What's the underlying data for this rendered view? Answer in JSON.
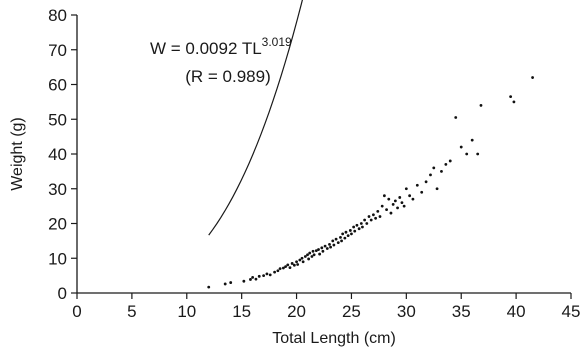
{
  "chart_data": {
    "type": "scatter",
    "xlabel": "Total Length (cm)",
    "ylabel": "Weight (g)",
    "xlim": [
      0,
      45
    ],
    "ylim": [
      0,
      80
    ],
    "xticks": [
      "0",
      "5",
      "10",
      "15",
      "20",
      "25",
      "30",
      "35",
      "40",
      "45"
    ],
    "yticks": [
      "0",
      "10",
      "20",
      "30",
      "40",
      "50",
      "60",
      "70",
      "80"
    ],
    "grid": false,
    "annotation": {
      "equation_base": "W = 0.0092 TL",
      "equation_exponent": "3.019",
      "r_text": "(R = 0.989)"
    },
    "fit": {
      "type": "power",
      "a": 0.0092,
      "b": 3.019,
      "x_range": [
        12,
        41.3
      ]
    },
    "points": [
      [
        12.0,
        1.7
      ],
      [
        13.5,
        2.6
      ],
      [
        14.0,
        3.0
      ],
      [
        15.2,
        3.4
      ],
      [
        15.8,
        3.9
      ],
      [
        16.0,
        4.5
      ],
      [
        16.3,
        4.0
      ],
      [
        16.6,
        4.8
      ],
      [
        17.0,
        5.0
      ],
      [
        17.3,
        5.5
      ],
      [
        17.6,
        5.2
      ],
      [
        18.0,
        6.0
      ],
      [
        18.3,
        6.4
      ],
      [
        18.5,
        7.0
      ],
      [
        18.8,
        7.2
      ],
      [
        19.0,
        7.6
      ],
      [
        19.2,
        8.1
      ],
      [
        19.4,
        7.3
      ],
      [
        19.6,
        8.5
      ],
      [
        19.8,
        8.0
      ],
      [
        20.0,
        9.0
      ],
      [
        20.1,
        8.2
      ],
      [
        20.3,
        9.5
      ],
      [
        20.5,
        10.0
      ],
      [
        20.6,
        9.0
      ],
      [
        20.8,
        10.5
      ],
      [
        21.0,
        11.0
      ],
      [
        21.1,
        9.8
      ],
      [
        21.2,
        11.5
      ],
      [
        21.4,
        10.5
      ],
      [
        21.5,
        12.0
      ],
      [
        21.6,
        11.0
      ],
      [
        21.8,
        12.2
      ],
      [
        22.0,
        12.5
      ],
      [
        22.1,
        11.2
      ],
      [
        22.3,
        13.0
      ],
      [
        22.4,
        12.0
      ],
      [
        22.6,
        13.5
      ],
      [
        22.8,
        12.8
      ],
      [
        23.0,
        14.0
      ],
      [
        23.1,
        13.2
      ],
      [
        23.3,
        15.0
      ],
      [
        23.4,
        13.8
      ],
      [
        23.6,
        15.5
      ],
      [
        23.8,
        14.5
      ],
      [
        24.0,
        16.0
      ],
      [
        24.1,
        15.0
      ],
      [
        24.2,
        17.0
      ],
      [
        24.4,
        15.8
      ],
      [
        24.5,
        17.5
      ],
      [
        24.7,
        16.5
      ],
      [
        24.9,
        18.0
      ],
      [
        25.0,
        17.0
      ],
      [
        25.2,
        19.0
      ],
      [
        25.3,
        17.8
      ],
      [
        25.5,
        19.5
      ],
      [
        25.7,
        18.5
      ],
      [
        25.9,
        20.0
      ],
      [
        26.0,
        19.0
      ],
      [
        26.2,
        21.0
      ],
      [
        26.4,
        20.0
      ],
      [
        26.6,
        22.0
      ],
      [
        26.8,
        21.0
      ],
      [
        27.0,
        22.5
      ],
      [
        27.2,
        21.5
      ],
      [
        27.4,
        23.5
      ],
      [
        27.6,
        22.0
      ],
      [
        27.8,
        25.0
      ],
      [
        28.0,
        28.0
      ],
      [
        28.2,
        24.0
      ],
      [
        28.4,
        27.0
      ],
      [
        28.6,
        23.0
      ],
      [
        28.8,
        25.5
      ],
      [
        29.0,
        26.5
      ],
      [
        29.2,
        24.5
      ],
      [
        29.4,
        27.5
      ],
      [
        29.6,
        26.0
      ],
      [
        29.8,
        25.0
      ],
      [
        30.0,
        30.0
      ],
      [
        30.3,
        28.0
      ],
      [
        30.6,
        27.0
      ],
      [
        31.0,
        31.0
      ],
      [
        31.4,
        29.0
      ],
      [
        31.8,
        32.0
      ],
      [
        32.2,
        34.0
      ],
      [
        32.5,
        36.0
      ],
      [
        32.8,
        30.0
      ],
      [
        33.2,
        35.0
      ],
      [
        33.6,
        37.0
      ],
      [
        34.0,
        38.0
      ],
      [
        34.5,
        50.5
      ],
      [
        35.0,
        42.0
      ],
      [
        35.5,
        40.0
      ],
      [
        36.0,
        44.0
      ],
      [
        36.5,
        40.0
      ],
      [
        36.8,
        54.0
      ],
      [
        39.5,
        56.5
      ],
      [
        39.8,
        55.0
      ],
      [
        41.5,
        62.0
      ]
    ]
  }
}
